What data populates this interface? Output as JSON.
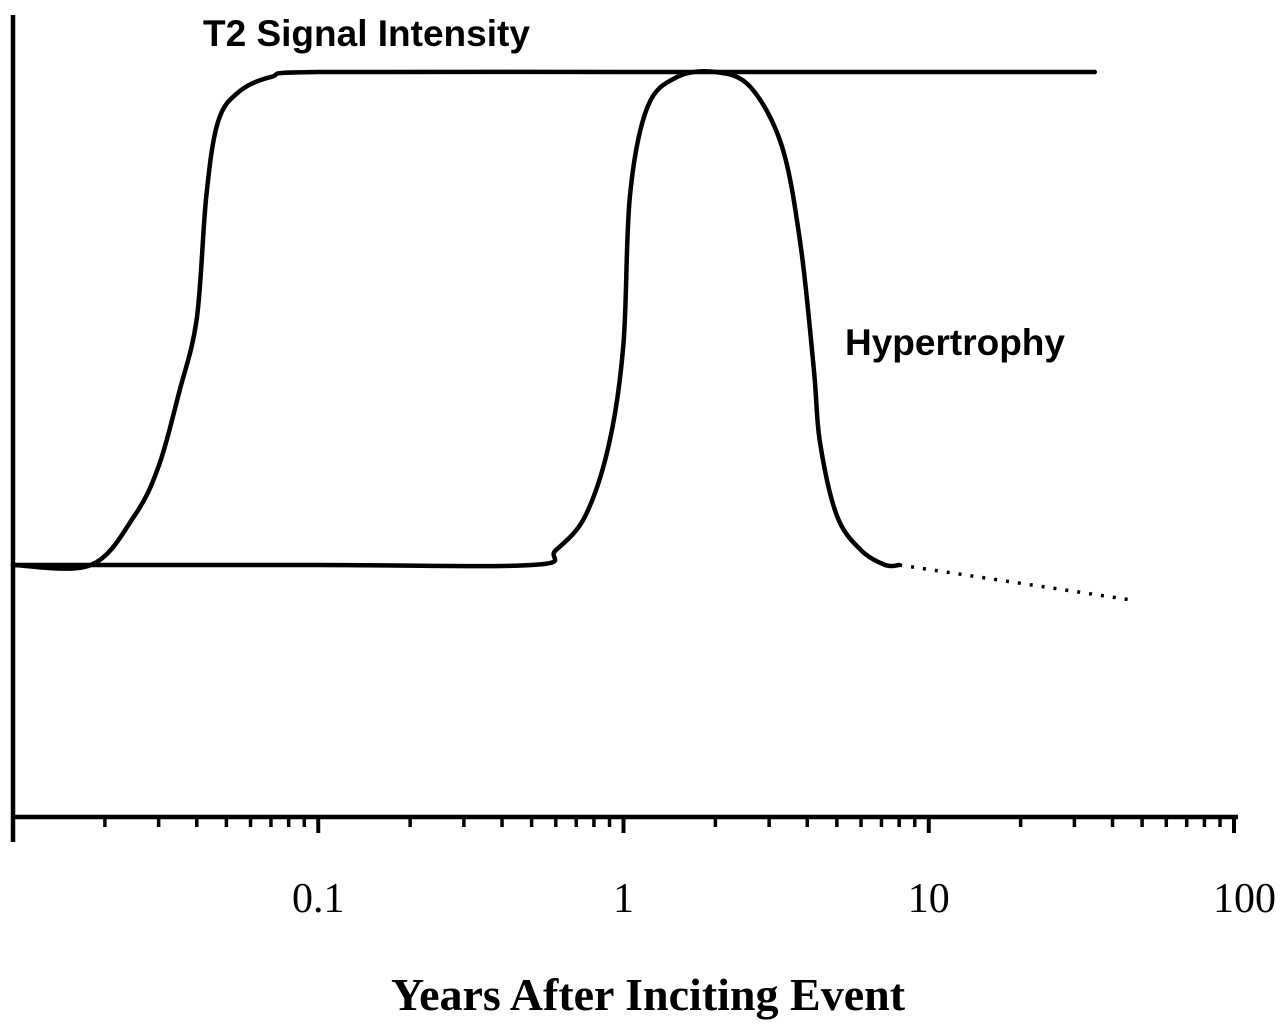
{
  "chart_data": {
    "type": "line",
    "title": "",
    "xlabel": "Years After Inciting Event",
    "ylabel": "",
    "x_scale": "log",
    "xlim": [
      0.01,
      100
    ],
    "ylim": [
      -0.5,
      1.0
    ],
    "xticks": [
      0.1,
      1,
      10,
      100
    ],
    "xtick_labels": [
      "0.1",
      "1",
      "10",
      "100"
    ],
    "grid": false,
    "legend": "none",
    "series": [
      {
        "name": "T2 Signal Intensity",
        "x": [
          0.01,
          0.018,
          0.025,
          0.03,
          0.035,
          0.04,
          0.043,
          0.047,
          0.055,
          0.07,
          0.1,
          1,
          10,
          35
        ],
        "y": [
          0,
          0,
          0.1,
          0.2,
          0.35,
          0.5,
          0.75,
          0.9,
          0.96,
          0.99,
          1,
          1,
          1,
          1
        ]
      },
      {
        "name": "Hypertrophy",
        "x": [
          0.01,
          0.1,
          0.5,
          0.6,
          0.75,
          0.9,
          1.0,
          1.05,
          1.2,
          1.5,
          2.0,
          2.6,
          3.3,
          3.8,
          4.2,
          4.4,
          5.0,
          6.0,
          7.2,
          8.0
        ],
        "y": [
          0,
          0,
          0,
          0.03,
          0.1,
          0.25,
          0.45,
          0.75,
          0.93,
          0.99,
          1,
          0.97,
          0.85,
          0.65,
          0.4,
          0.25,
          0.1,
          0.03,
          0,
          0
        ]
      },
      {
        "name": "",
        "style": "dotted",
        "x": [
          8,
          45
        ],
        "y": [
          0,
          -0.07
        ]
      }
    ]
  }
}
